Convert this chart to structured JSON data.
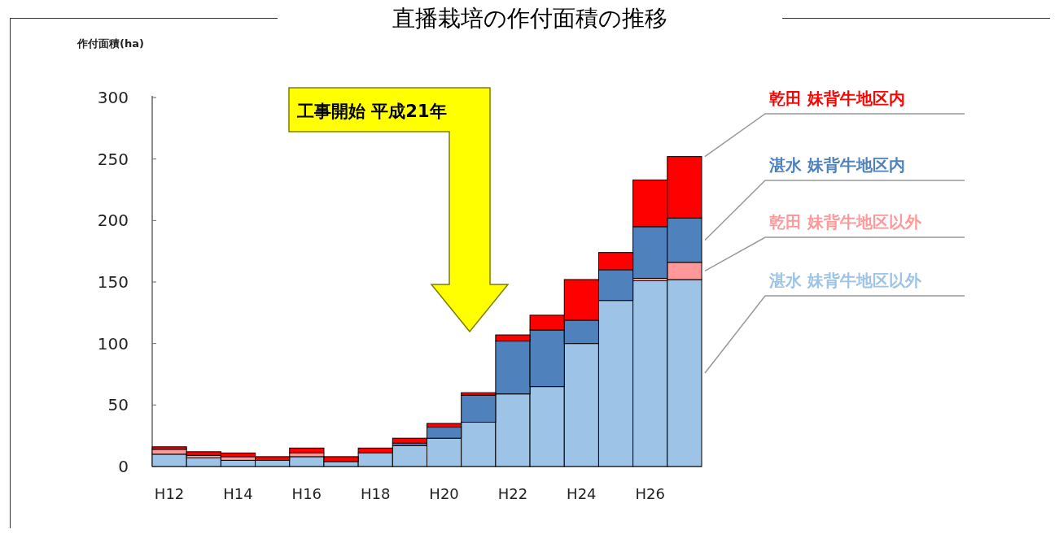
{
  "chart_data": {
    "type": "bar",
    "stacked": true,
    "title": "直播栽培の作付面積の推移",
    "ylabel": "作付面積(ha)",
    "categories": [
      "H12",
      null,
      "H14",
      null,
      "H16",
      null,
      "H18",
      null,
      "H20",
      null,
      "H22",
      null,
      "H24",
      null,
      "H26",
      null
    ],
    "series": [
      {
        "name": "湛水 妹背牛地区以外",
        "color": "#9dc3e6",
        "values": [
          10,
          7,
          5,
          5,
          8,
          4,
          11,
          17,
          23,
          36,
          59,
          65,
          100,
          135,
          151,
          152
        ]
      },
      {
        "name": "乾田 妹背牛地区以外",
        "color": "#ff9999",
        "values": [
          4,
          2,
          3,
          0,
          3,
          0,
          0,
          0,
          0,
          0,
          0,
          0,
          0,
          0,
          2,
          14
        ]
      },
      {
        "name": "湛水 妹背牛地区内",
        "color": "#4f81bd",
        "values": [
          0,
          0,
          0,
          0,
          0,
          0,
          0,
          2,
          9,
          22,
          43,
          46,
          19,
          25,
          42,
          36
        ]
      },
      {
        "name": "乾田 妹背牛地区内",
        "color": "#ff0000",
        "values": [
          2,
          3,
          3,
          3,
          4,
          4,
          4,
          4,
          3,
          2,
          5,
          12,
          33,
          14,
          38,
          50
        ]
      }
    ],
    "ylim": [
      0,
      300
    ],
    "yticks": [
      0,
      50,
      100,
      150,
      200,
      250,
      300
    ],
    "grid": false,
    "legend": "right",
    "annotations": [
      "工事開始 平成21年"
    ]
  }
}
